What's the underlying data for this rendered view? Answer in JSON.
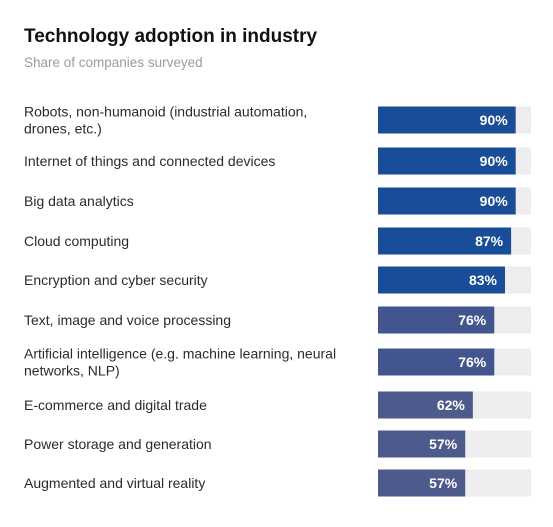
{
  "title": "Technology adoption in industry",
  "subtitle": "Share of companies surveyed",
  "colors": {
    "track": "#ededf0",
    "bar_high": "#1a4d97",
    "bar_mid": "#42558f",
    "bar_low": "#4d5b8c",
    "value_text": "#ffffff"
  },
  "chart_data": {
    "type": "bar",
    "orientation": "horizontal",
    "unit": "%",
    "xlim": [
      0,
      100
    ],
    "grid": false,
    "legend": "none",
    "categories": [
      "Robots, non-humanoid (industrial automation, drones, etc.)",
      "Internet of things and connected devices",
      "Big data analytics",
      "Cloud computing",
      "Encryption and cyber security",
      "Text, image and voice processing",
      "Artificial intelligence (e.g. machine learning, neural networks, NLP)",
      "E-commerce and digital trade",
      "Power storage and generation",
      "Augmented and virtual reality"
    ],
    "category_lines": [
      [
        "Robots, non-humanoid (industrial automation,",
        "drones, etc.)"
      ],
      [
        "Internet of things and connected devices"
      ],
      [
        "Big data analytics"
      ],
      [
        "Cloud computing"
      ],
      [
        "Encryption and cyber security"
      ],
      [
        "Text, image and voice processing"
      ],
      [
        "Artificial intelligence (e.g. machine learning, neural",
        "networks, NLP)"
      ],
      [
        "E-commerce and digital trade"
      ],
      [
        "Power storage and generation"
      ],
      [
        "Augmented and virtual reality"
      ]
    ],
    "values": [
      90,
      90,
      90,
      87,
      83,
      76,
      76,
      62,
      57,
      57
    ],
    "value_labels": [
      "90%",
      "90%",
      "90%",
      "87%",
      "83%",
      "76%",
      "76%",
      "62%",
      "57%",
      "57%"
    ]
  }
}
